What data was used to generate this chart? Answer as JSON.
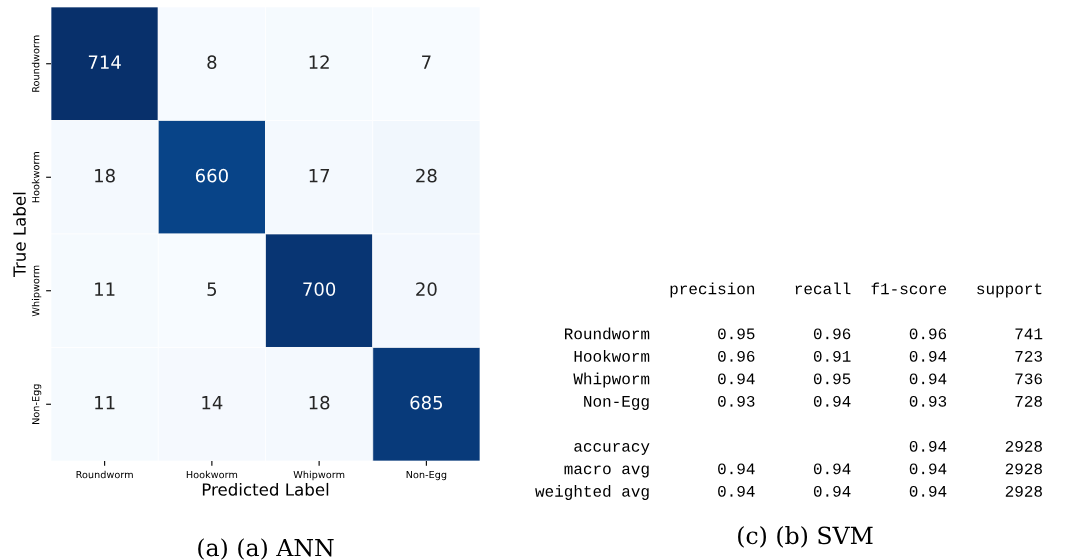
{
  "chart_data": [
    {
      "type": "heatmap",
      "title": "(a) (a) ANN",
      "xlabel": "Predicted Label",
      "ylabel": "True Label",
      "categories": [
        "Roundworm",
        "Hookworm",
        "Whipworm",
        "Non-Egg"
      ],
      "y_categories": [
        "Roundworm",
        "Hookworm",
        "Whipworm",
        "Non-Egg"
      ],
      "cells": [
        [
          714,
          8,
          12,
          7
        ],
        [
          18,
          660,
          17,
          28
        ],
        [
          11,
          5,
          700,
          20
        ],
        [
          11,
          14,
          18,
          685
        ]
      ],
      "data_labels": true
    },
    {
      "type": "other",
      "title": "(c) (b) SVM",
      "annotations": [
        "              precision    recall  f1-score   support",
        "   Roundworm       0.95      0.96      0.96       741",
        "    Hookworm       0.96      0.91      0.94       723",
        "    Whipworm       0.94      0.95      0.94       736",
        "     Non-Egg       0.93      0.94      0.93       728",
        "    accuracy                           0.94      2928",
        "   macro avg       0.94      0.94      0.94      2928",
        "weighted avg       0.94      0.94      0.94      2928"
      ]
    }
  ]
}
